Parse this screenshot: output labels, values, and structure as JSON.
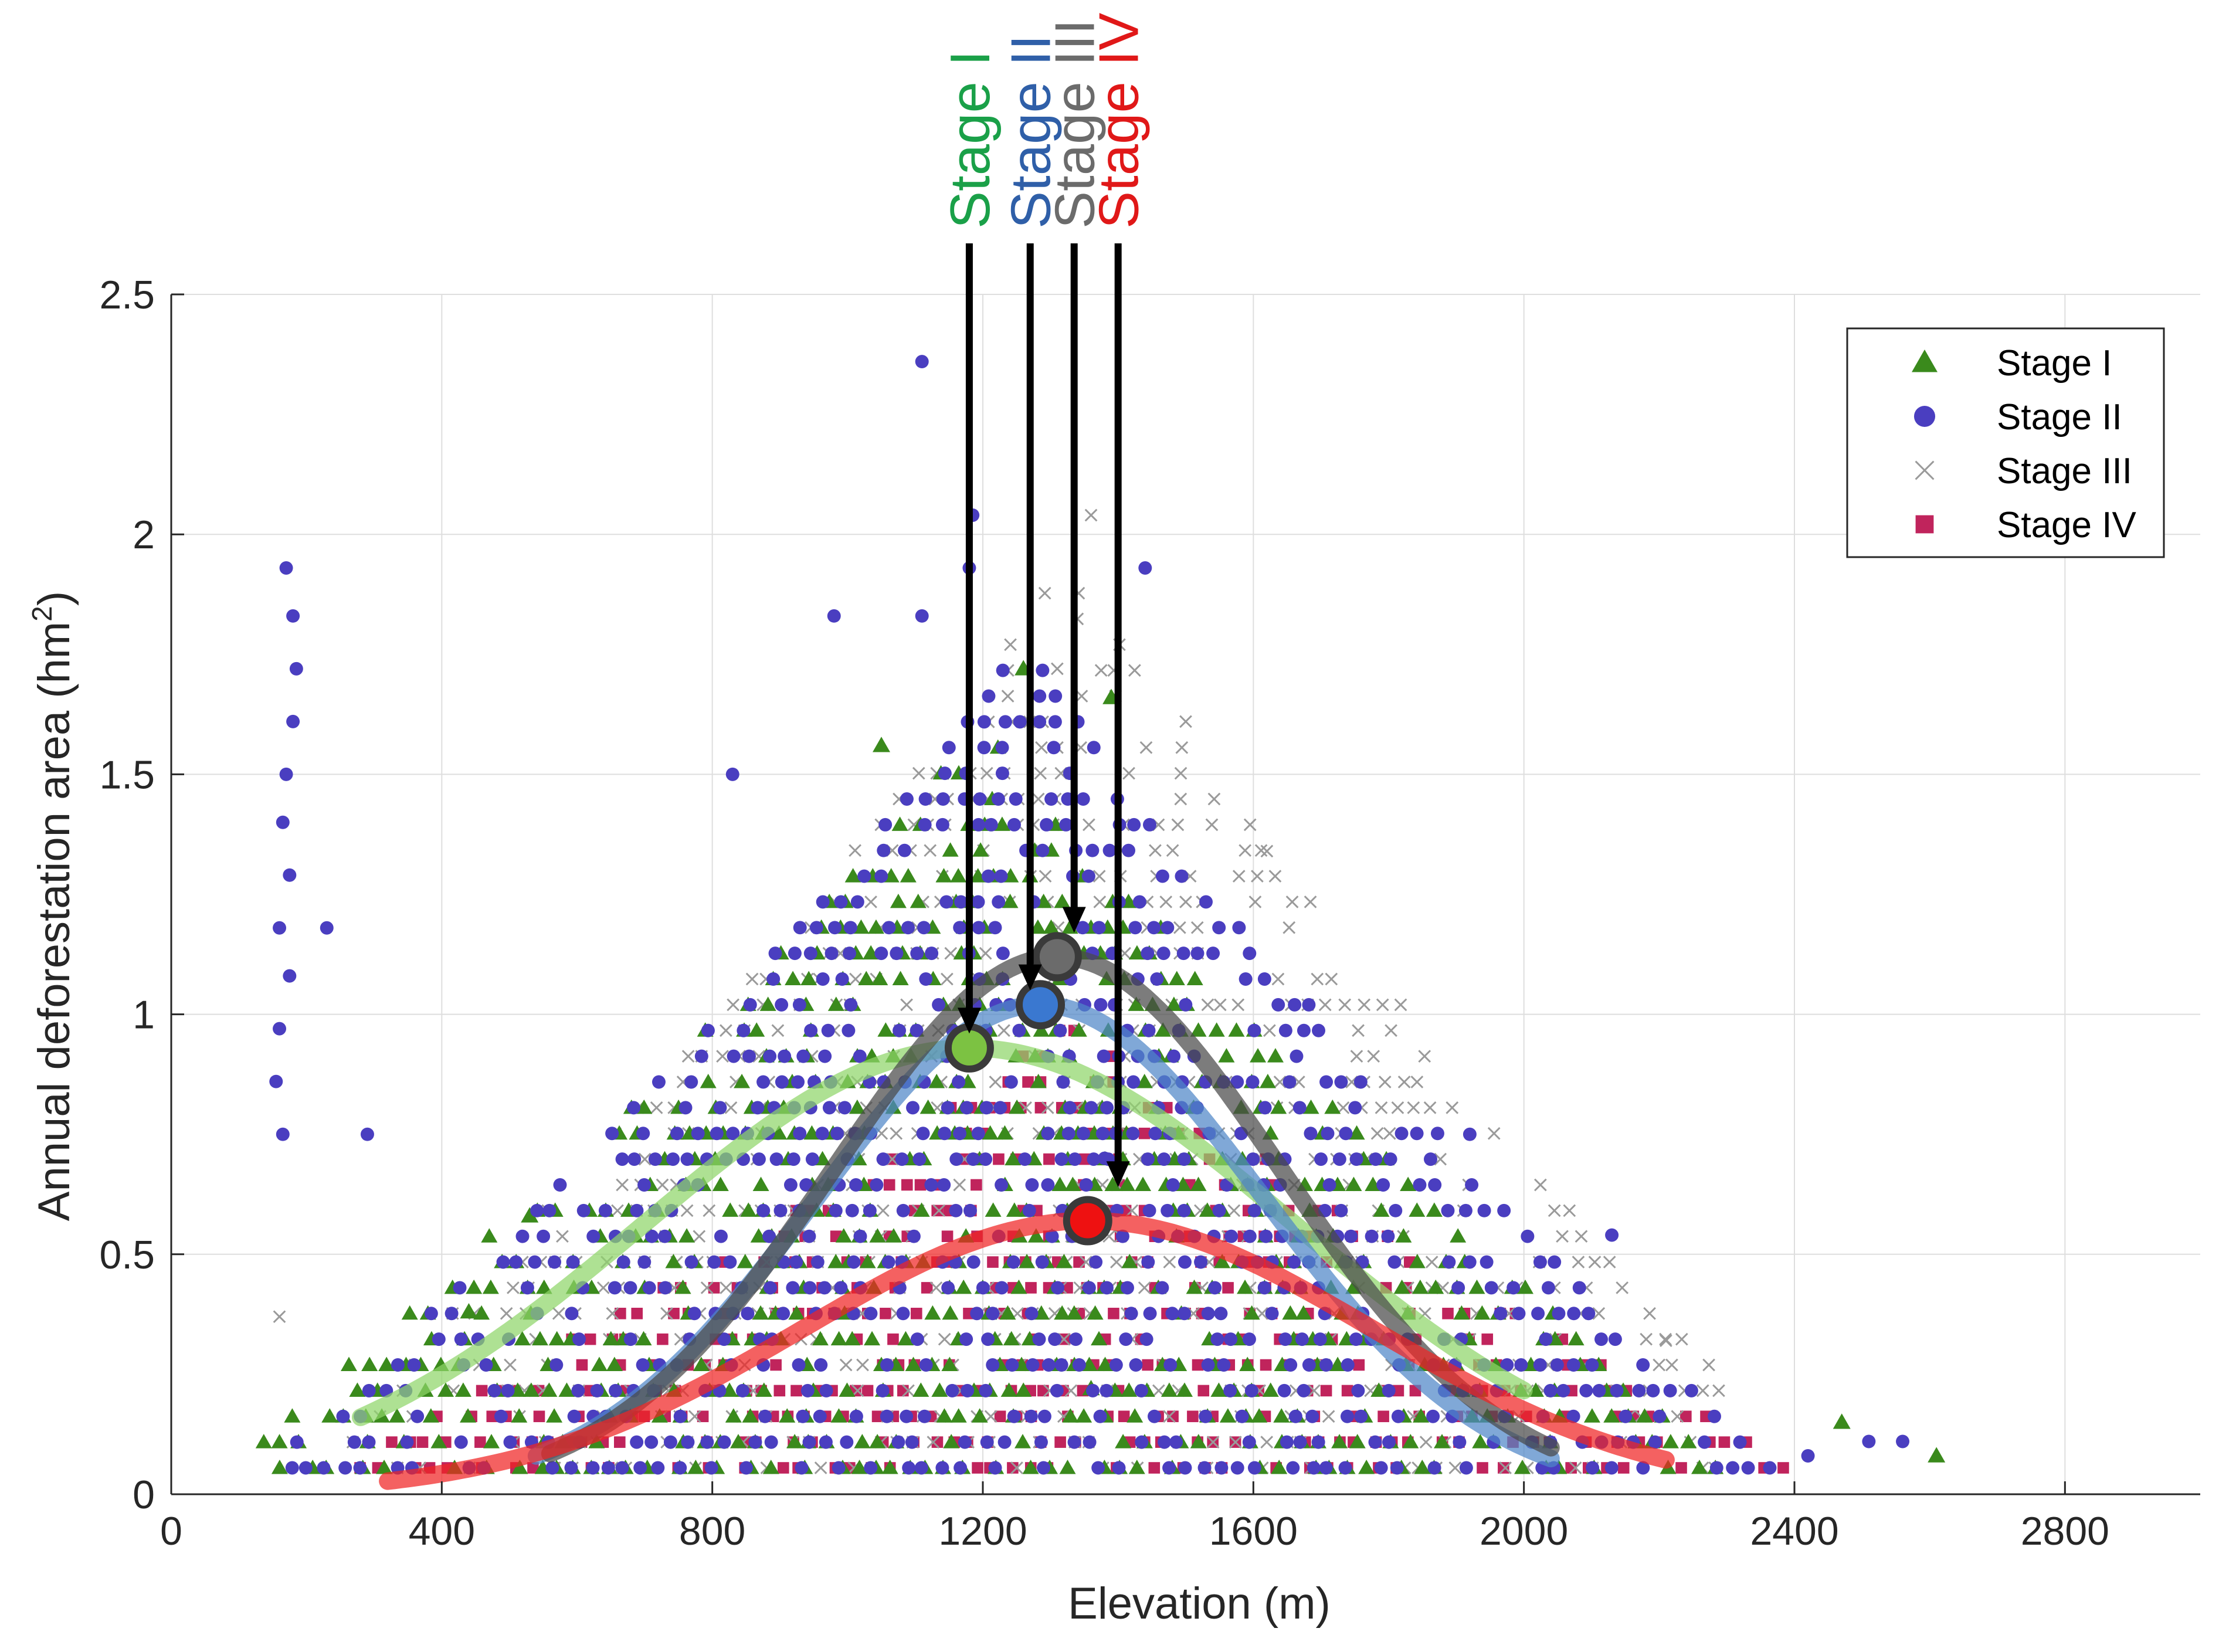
{
  "chart_data": {
    "type": "scatter",
    "title": "",
    "xlabel": "Elevation (m)",
    "ylabel": "Annual deforestation area (hm",
    "ylabel_sup": "2",
    "ylabel_end": ")",
    "xlim": [
      0,
      3000
    ],
    "ylim": [
      0,
      2.5
    ],
    "xticks": [
      0,
      400,
      800,
      1200,
      1600,
      2000,
      2400,
      2800
    ],
    "xtick_labels": [
      "0",
      "400",
      "800",
      "1200",
      "1600",
      "2000",
      "2400",
      "2800"
    ],
    "yticks": [
      0,
      0.5,
      1,
      1.5,
      2,
      2.5
    ],
    "ytick_labels": [
      "0",
      "0.5",
      "1",
      "1.5",
      "2",
      "2.5"
    ],
    "grid": true,
    "legend_position": "top-right",
    "series": [
      {
        "name": "Stage I",
        "marker": "triangle",
        "color": "#3a8a1c",
        "curve_color": "#8fd66a",
        "peak_color": "#7cc242",
        "fit": {
          "peak_x": 1180,
          "peak_y": 0.93,
          "x_min": 280,
          "x_max": 2000,
          "sigma": 480
        },
        "spread": {
          "x_center": 1200,
          "x_range": [
            130,
            2620
          ],
          "density": 1.0
        }
      },
      {
        "name": "Stage II",
        "marker": "circle",
        "color": "#4a3ec0",
        "curve_color": "#4f86c8",
        "peak_color": "#3a78d0",
        "fit": {
          "peak_x": 1285,
          "peak_y": 1.02,
          "x_min": 540,
          "x_max": 2040,
          "sigma": 330
        },
        "spread": {
          "x_center": 1260,
          "x_range": [
            140,
            2560
          ],
          "density": 1.0
        }
      },
      {
        "name": "Stage III",
        "marker": "x",
        "color": "#9a9a9a",
        "curve_color": "#4a4a4a",
        "peak_color": "#6b6b6b",
        "fit": {
          "peak_x": 1310,
          "peak_y": 1.12,
          "x_min": 560,
          "x_max": 2040,
          "sigma": 330
        },
        "spread": {
          "x_center": 1320,
          "x_range": [
            160,
            2300
          ],
          "density": 0.7
        }
      },
      {
        "name": "Stage IV",
        "marker": "square",
        "color": "#c0245c",
        "curve_color": "#f02424",
        "peak_color": "#ee1111",
        "fit": {
          "peak_x": 1355,
          "peak_y": 0.57,
          "x_min": 320,
          "x_max": 2210,
          "sigma": 420
        },
        "spread": {
          "x_center": 1330,
          "x_range": [
            100,
            2600
          ],
          "density": 1.0
        }
      }
    ],
    "annotations": [
      {
        "text": "Stage I",
        "color": "#1aa048",
        "arrow_x": 1180,
        "arrow_y_end": 0.96
      },
      {
        "text": "Stage II",
        "color": "#2f5fa8",
        "arrow_x": 1270,
        "arrow_y_end": 1.05
      },
      {
        "text": "Stage III",
        "color": "#6b6b6b",
        "arrow_x": 1335,
        "arrow_y_end": 1.17
      },
      {
        "text": "Stage IV",
        "color": "#e01818",
        "arrow_x": 1400,
        "arrow_y_end": 0.64
      }
    ]
  }
}
